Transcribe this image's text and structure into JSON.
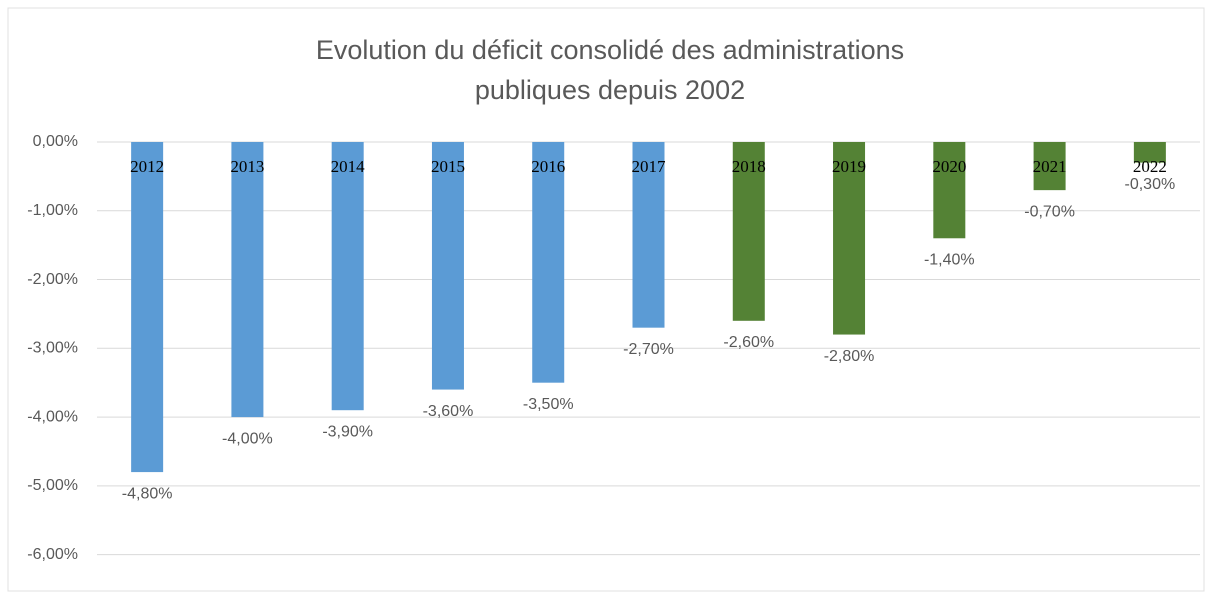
{
  "chart_data": {
    "type": "bar",
    "title": "Evolution du déficit consolidé des administrations publiques depuis 2002",
    "categories": [
      "2012",
      "2013",
      "2014",
      "2015",
      "2016",
      "2017",
      "2018",
      "2019",
      "2020",
      "2021",
      "2022"
    ],
    "values": [
      -4.8,
      -4.0,
      -3.9,
      -3.6,
      -3.5,
      -2.7,
      -2.6,
      -2.8,
      -1.4,
      -0.7,
      -0.3
    ],
    "value_labels": [
      "-4,80%",
      "-4,00%",
      "-3,90%",
      "-3,60%",
      "-3,50%",
      "-2,70%",
      "-2,60%",
      "-2,80%",
      "-1,40%",
      "-0,70%",
      "-0,30%"
    ],
    "colors": [
      "#5b9bd5",
      "#5b9bd5",
      "#5b9bd5",
      "#5b9bd5",
      "#5b9bd5",
      "#5b9bd5",
      "#548235",
      "#548235",
      "#548235",
      "#548235",
      "#548235"
    ],
    "ylim": [
      -6.5,
      0
    ],
    "yticks": [
      {
        "value": 0,
        "label": "0,00%"
      },
      {
        "value": -1,
        "label": "-1,00%"
      },
      {
        "value": -2,
        "label": "-2,00%"
      },
      {
        "value": -3,
        "label": "-3,00%"
      },
      {
        "value": -4,
        "label": "-4,00%"
      },
      {
        "value": -5,
        "label": "-5,00%"
      },
      {
        "value": -6,
        "label": "-6,00%"
      }
    ],
    "grid": true
  }
}
